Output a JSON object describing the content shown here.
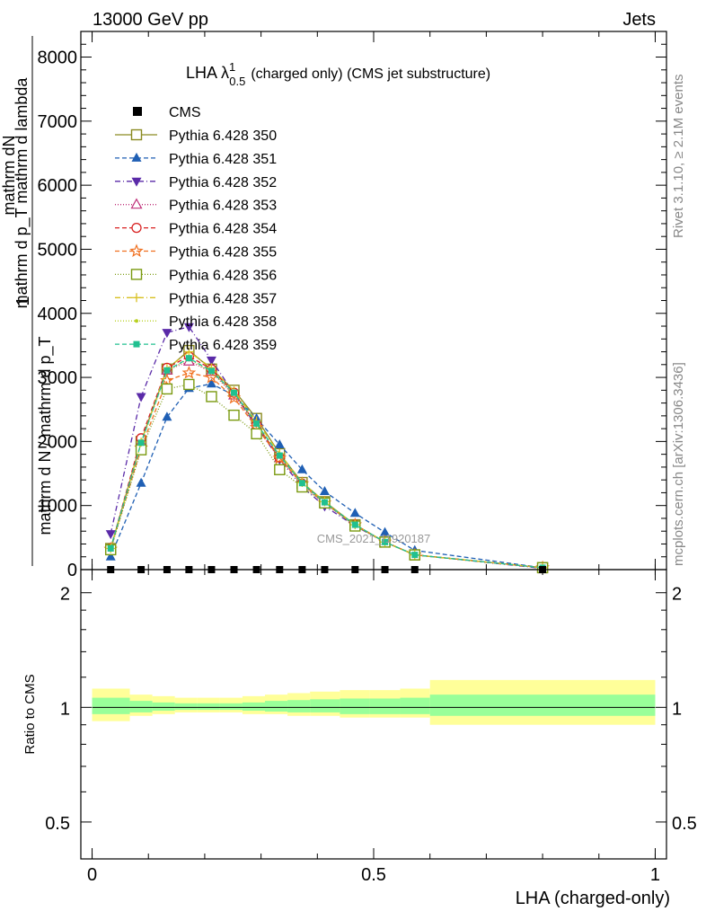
{
  "header": {
    "left": "13000 GeV pp",
    "right": "Jets"
  },
  "side_labels": {
    "rivet": "Rivet 3.1.10, ≥ 2.1M events",
    "mcplots": "mcplots.cern.ch [arXiv:1306.3436]"
  },
  "watermark": "CMS_2021_I1920187",
  "chart_data": [
    {
      "type": "line",
      "title": "LHA λ",
      "title_sup": "1",
      "title_sub": "0.5",
      "title_suffix": "(charged only) (CMS jet substructure)",
      "ylabel_num": "mathrm dN",
      "ylabel_den": "mathrm d p_T mathrm d lambda",
      "ylabel_sub": "T",
      "ylabel_frac_num": "1",
      "ylabel_frac_den": "mathrm d N / mathrm d p_T",
      "xlabel": "",
      "xlim": [
        -0.02,
        1.02
      ],
      "ylim": [
        0,
        8400
      ],
      "yticks": [
        "0",
        "1000",
        "2000",
        "3000",
        "4000",
        "5000",
        "6000",
        "7000",
        "8000"
      ],
      "yticks_values": [
        0,
        1000,
        2000,
        3000,
        4000,
        5000,
        6000,
        7000,
        8000
      ],
      "legend_position": "top-left",
      "x": [
        0.033,
        0.087,
        0.133,
        0.172,
        0.212,
        0.252,
        0.292,
        0.333,
        0.373,
        0.413,
        0.467,
        0.52,
        0.573,
        0.8
      ],
      "cms": [
        0,
        0,
        0,
        0,
        0,
        0,
        0,
        0,
        0,
        0,
        0,
        0,
        0,
        0
      ],
      "series": [
        {
          "name": "Pythia 6.428 350",
          "color": "#8a8a20",
          "marker": "square-open",
          "dash": "solid",
          "values": [
            330,
            2000,
            3130,
            3420,
            3130,
            2800,
            2360,
            1810,
            1360,
            1060,
            700,
            430,
            230,
            30
          ]
        },
        {
          "name": "Pythia 6.428 351",
          "color": "#1f5fb4",
          "marker": "triangle-up",
          "dash": "5,3",
          "values": [
            200,
            1350,
            2380,
            2830,
            2900,
            2720,
            2360,
            1950,
            1560,
            1220,
            880,
            580,
            300,
            30
          ]
        },
        {
          "name": "Pythia 6.428 352",
          "color": "#5a2aa8",
          "marker": "triangle-down",
          "dash": "6,3,1,3",
          "values": [
            560,
            2700,
            3700,
            3790,
            3270,
            2750,
            2230,
            1720,
            1290,
            990,
            680,
            430,
            230,
            20
          ]
        },
        {
          "name": "Pythia 6.428 353",
          "color": "#c0307a",
          "marker": "triangle-open",
          "dash": "1,2",
          "values": [
            330,
            1990,
            3110,
            3250,
            3090,
            2720,
            2250,
            1740,
            1330,
            1030,
            690,
            430,
            230,
            30
          ]
        },
        {
          "name": "Pythia 6.428 354",
          "color": "#d82020",
          "marker": "circle-open",
          "dash": "5,3",
          "values": [
            330,
            2050,
            3150,
            3330,
            3130,
            2760,
            2260,
            1750,
            1340,
            1040,
            700,
            430,
            230,
            30
          ]
        },
        {
          "name": "Pythia 6.428 355",
          "color": "#f07020",
          "marker": "star-open",
          "dash": "5,3",
          "values": [
            320,
            1900,
            2950,
            3070,
            3000,
            2680,
            2220,
            1740,
            1340,
            1040,
            700,
            430,
            230,
            30
          ]
        },
        {
          "name": "Pythia 6.428 356",
          "color": "#7a9a10",
          "marker": "square-open",
          "dash": "1,2",
          "values": [
            310,
            1870,
            2820,
            2890,
            2700,
            2410,
            2120,
            1560,
            1290,
            1040,
            680,
            430,
            230,
            30
          ]
        },
        {
          "name": "Pythia 6.428 357",
          "color": "#d8c020",
          "marker": "cross",
          "dash": "6,3,1,3",
          "values": [
            330,
            1990,
            3140,
            3400,
            3150,
            2790,
            2320,
            1810,
            1360,
            1060,
            700,
            430,
            230,
            30
          ]
        },
        {
          "name": "Pythia 6.428 358",
          "color": "#b8d020",
          "marker": "dot",
          "dash": "1,2",
          "values": [
            330,
            1970,
            3100,
            3290,
            3080,
            2750,
            2260,
            1780,
            1350,
            1050,
            700,
            430,
            230,
            30
          ]
        },
        {
          "name": "Pythia 6.428 359",
          "color": "#20c090",
          "marker": "square",
          "dash": "5,3",
          "values": [
            330,
            1980,
            3110,
            3300,
            3100,
            2760,
            2280,
            1780,
            1350,
            1050,
            700,
            430,
            230,
            30
          ]
        }
      ],
      "cms_legend": "CMS"
    },
    {
      "type": "area",
      "ylabel": "Ratio to CMS",
      "xlabel": "LHA (charged-only)",
      "xlim": [
        -0.02,
        1.02
      ],
      "ylim": [
        0.4,
        2.3
      ],
      "log_y": true,
      "yticks": [
        "0.5",
        "1",
        "2"
      ],
      "yticks_values": [
        0.5,
        1,
        2
      ],
      "xticks": [
        "0",
        "0.5",
        "1"
      ],
      "xticks_values": [
        0,
        0.5,
        1
      ],
      "bin_edges": [
        0,
        0.067,
        0.107,
        0.147,
        0.187,
        0.227,
        0.267,
        0.307,
        0.347,
        0.387,
        0.44,
        0.493,
        0.547,
        0.6,
        1.0
      ],
      "band_outer_low": [
        0.92,
        0.95,
        0.96,
        0.97,
        0.97,
        0.97,
        0.96,
        0.96,
        0.95,
        0.95,
        0.94,
        0.94,
        0.94,
        0.9
      ],
      "band_outer_high": [
        1.12,
        1.08,
        1.07,
        1.06,
        1.06,
        1.06,
        1.07,
        1.08,
        1.09,
        1.1,
        1.11,
        1.11,
        1.12,
        1.18
      ],
      "band_inner_low": [
        0.96,
        0.97,
        0.98,
        0.985,
        0.985,
        0.985,
        0.98,
        0.975,
        0.97,
        0.97,
        0.96,
        0.96,
        0.96,
        0.95
      ],
      "band_inner_high": [
        1.06,
        1.04,
        1.03,
        1.025,
        1.025,
        1.025,
        1.03,
        1.04,
        1.045,
        1.05,
        1.055,
        1.055,
        1.06,
        1.08
      ],
      "band_colors": {
        "outer": "#ffff99",
        "inner": "#99ff99"
      }
    }
  ]
}
